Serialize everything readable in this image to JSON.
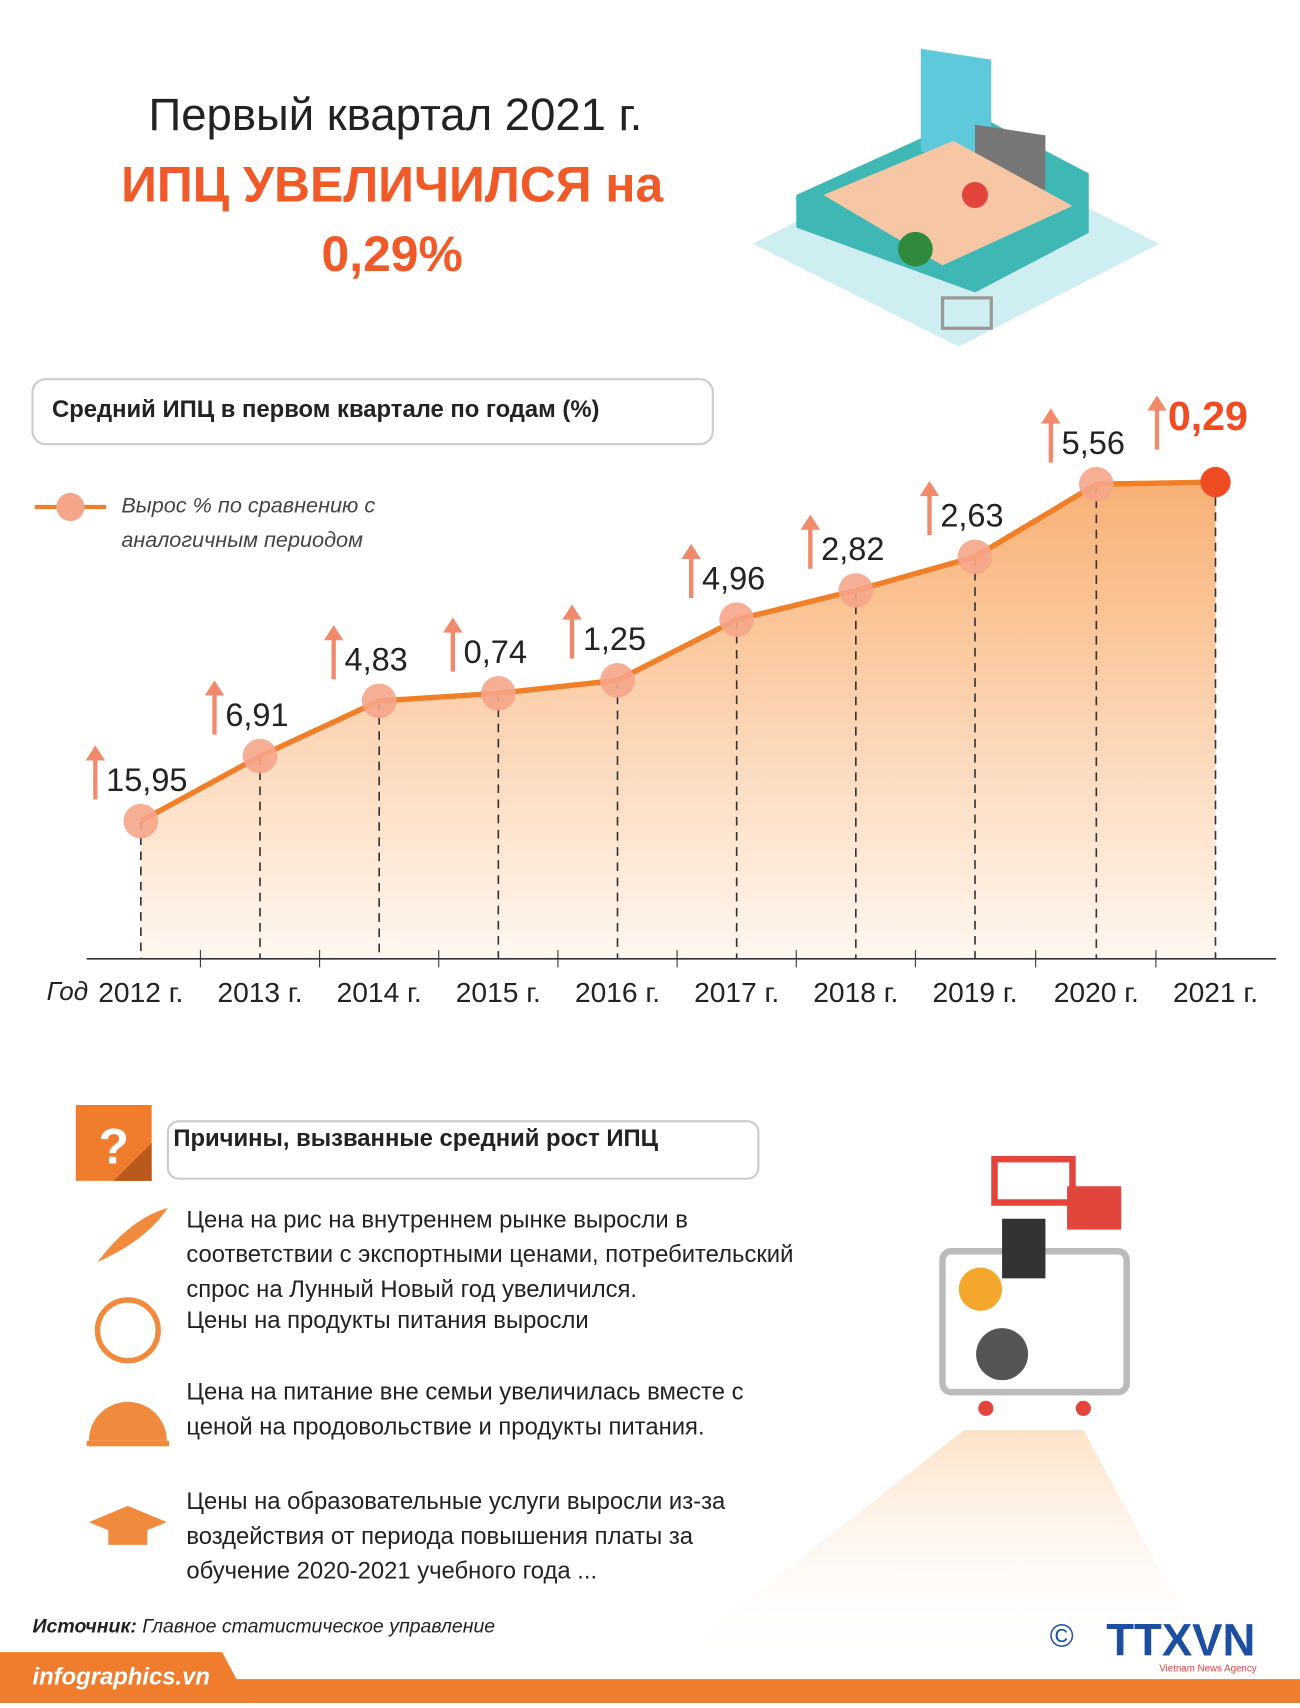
{
  "header": {
    "title": "Первый квартал 2021 г.",
    "headline": "ИПЦ УВЕЛИЧИЛСЯ на",
    "value": "0,29%"
  },
  "chart": {
    "title": "Средний ИПЦ в первом квартале по годам (%)",
    "legend": [
      "Вырос % по сравнению с",
      "аналогичным периодом"
    ],
    "axis_label": "Год",
    "years": [
      "2012 г.",
      "2013 г.",
      "2014 г.",
      "2015 г.",
      "2016 г.",
      "2017 г.",
      "2018 г.",
      "2019 г.",
      "2020 г.",
      "2021 г."
    ],
    "values": [
      "15,95",
      "6,91",
      "4,83",
      "0,74",
      "1,25",
      "4,96",
      "2,82",
      "2,63",
      "5,56",
      "0,29"
    ]
  },
  "reasons": {
    "title": "Причины, вызванные средний рост ИПЦ",
    "items": [
      [
        "Цена на рис на внутреннем рынке выросли в",
        "соответствии с экспортными ценами, потребительский",
        "спрос на Лунный Новый год увеличился."
      ],
      [
        "Цены на продукты питания выросли"
      ],
      [
        "Цена на питание вне семьи увеличилась вместе с",
        "ценой на продовольствие и продукты питания."
      ],
      [
        "Цены на образовательные услуги выросли из-за",
        "воздействия от периода повышения платы за",
        "обучение 2020-2021 учебного года ..."
      ]
    ]
  },
  "source": {
    "label": "Источник:",
    "text": "Главное статистическое управление"
  },
  "footer": {
    "site": "infographics.vn",
    "logo": "TTXVN",
    "logo_sub": "Vietnam News Agency"
  }
}
